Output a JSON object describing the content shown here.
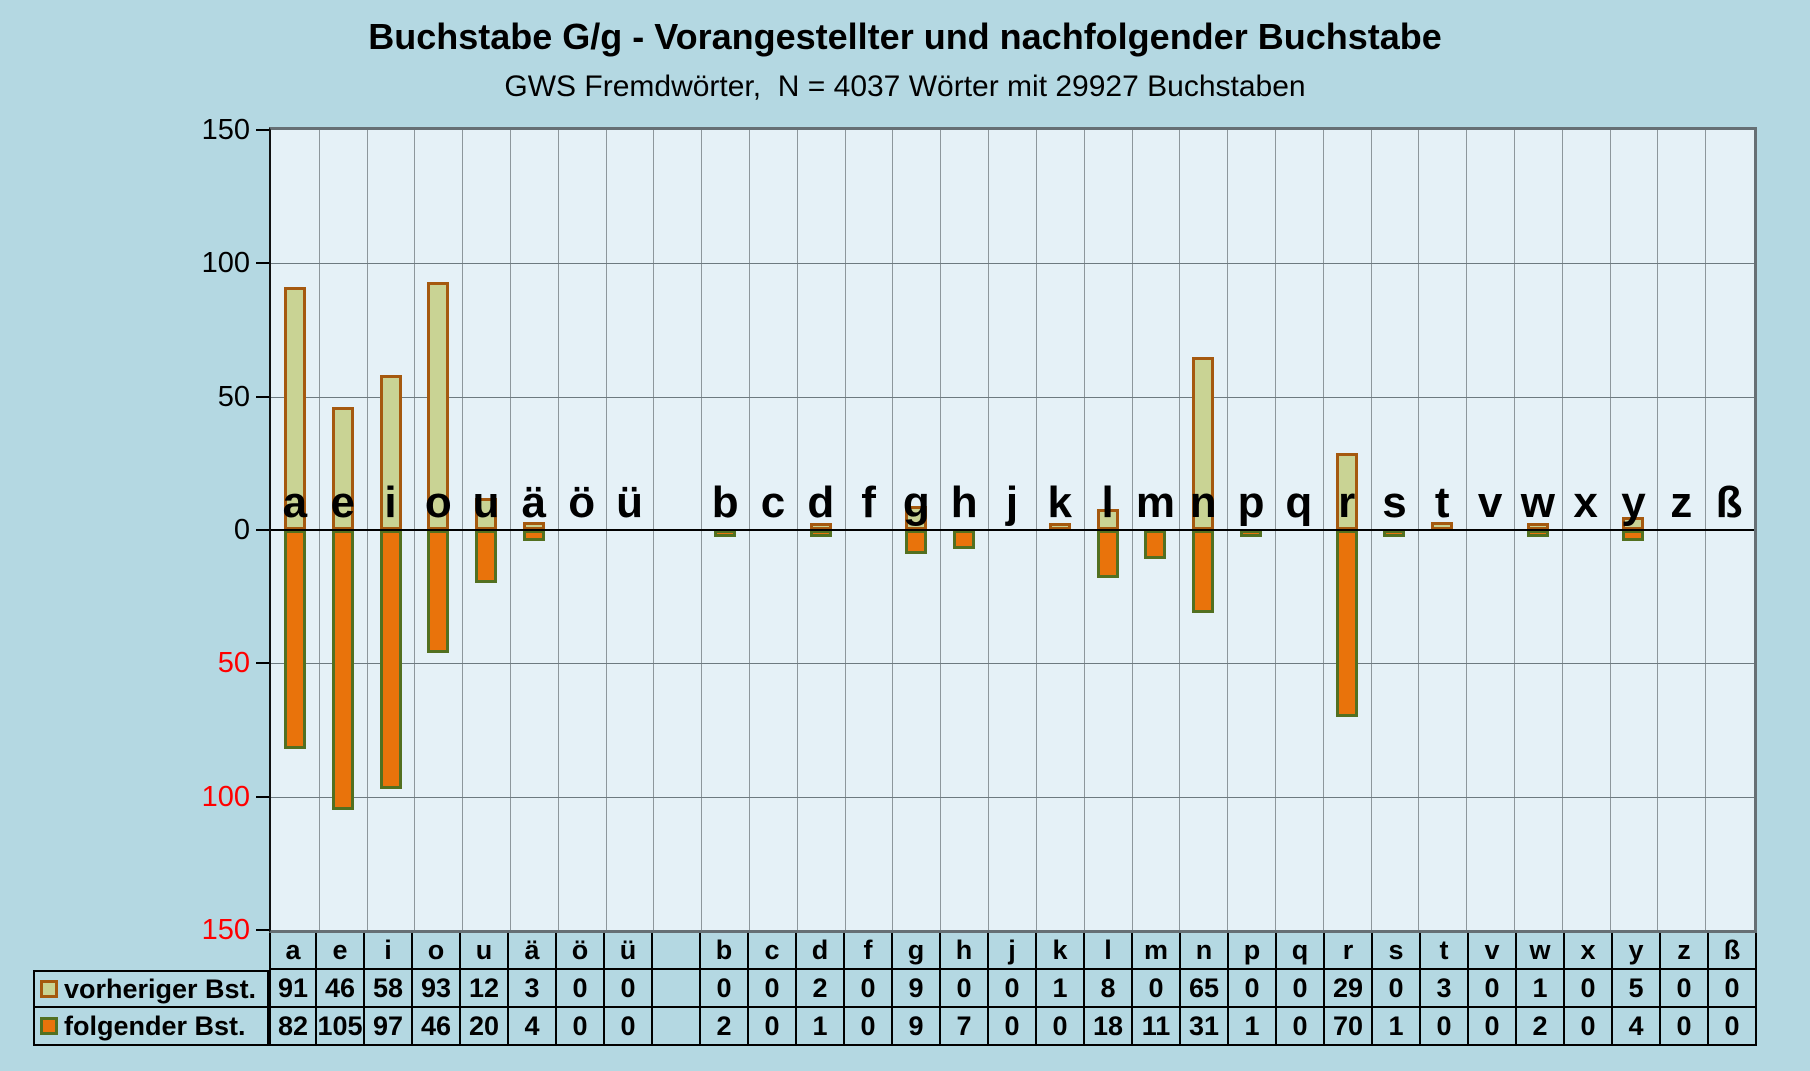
{
  "title": "Buchstabe G/g - Vorangestellter und nachfolgender Buchstabe",
  "subtitle": "GWS Fremdwörter,  N = 4037 Wörter mit 29927 Buchstaben",
  "chart_data": {
    "type": "bar",
    "orientation": "diverging-vertical",
    "categories": [
      "a",
      "e",
      "i",
      "o",
      "u",
      "ä",
      "ö",
      "ü",
      "",
      "b",
      "c",
      "d",
      "f",
      "g",
      "h",
      "j",
      "k",
      "l",
      "m",
      "n",
      "p",
      "q",
      "r",
      "s",
      "t",
      "v",
      "w",
      "x",
      "y",
      "z",
      "ß"
    ],
    "series": [
      {
        "name": "vorheriger Bst.",
        "direction": "up",
        "fill": "#c9d394",
        "border": "#a5590f",
        "values": [
          91,
          46,
          58,
          93,
          12,
          3,
          0,
          0,
          null,
          0,
          0,
          2,
          0,
          9,
          0,
          0,
          1,
          8,
          0,
          65,
          0,
          0,
          29,
          0,
          3,
          0,
          1,
          0,
          5,
          0,
          0
        ]
      },
      {
        "name": "folgender Bst.",
        "direction": "down",
        "fill": "#e9730b",
        "border": "#527020",
        "values": [
          82,
          105,
          97,
          46,
          20,
          4,
          0,
          0,
          null,
          2,
          0,
          1,
          0,
          9,
          7,
          0,
          0,
          18,
          11,
          31,
          1,
          0,
          70,
          1,
          0,
          0,
          2,
          0,
          4,
          0,
          0
        ]
      }
    ],
    "ylim": [
      -150,
      150
    ],
    "gridline_values": [
      100,
      50,
      -50,
      -100
    ],
    "grid": true,
    "legend_position": "table-left"
  },
  "y_axis": {
    "ticks": [
      {
        "value": 150,
        "label": "150"
      },
      {
        "value": 100,
        "label": "100"
      },
      {
        "value": 50,
        "label": "50"
      },
      {
        "value": 0,
        "label": "0"
      },
      {
        "value": -50,
        "label": "50"
      },
      {
        "value": -100,
        "label": "100"
      },
      {
        "value": -150,
        "label": "150"
      }
    ],
    "negative_label_color": "#ff0000",
    "positive_label_color": "#000000"
  },
  "colors": {
    "page_background": "#b4d8e2",
    "plot_background": "#e5f1f7",
    "zero_line": "#000000",
    "vertical_grid": "#8d979c",
    "horizontal_grid": "#6d7a80",
    "table_border": "#000000"
  }
}
